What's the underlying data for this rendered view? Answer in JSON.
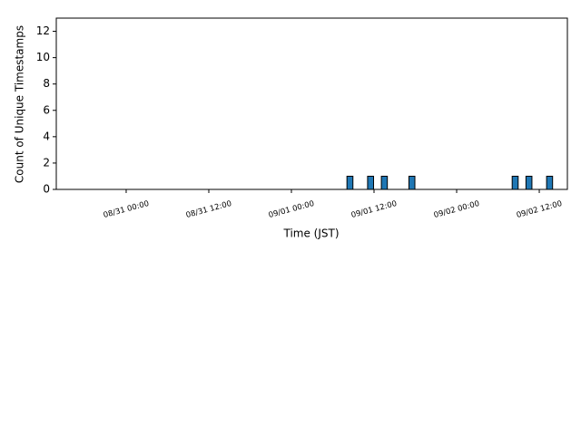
{
  "chart_data": {
    "type": "histogram",
    "xlabel": "Time (JST)",
    "ylabel": "Count of Unique Timestamps",
    "bins": [
      "09/01 08:00",
      "09/01 09:00",
      "09/01 10:00",
      "09/01 11:00",
      "09/01 12:00",
      "09/01 13:00",
      "09/01 14:00",
      "09/01 15:00",
      "09/01 16:00",
      "09/01 17:00",
      "09/01 18:00",
      "09/01 19:00",
      "09/01 20:00",
      "09/01 21:00",
      "09/01 22:00",
      "09/01 23:00",
      "09/02 00:00",
      "09/02 01:00",
      "09/02 02:00",
      "09/02 03:00",
      "09/02 04:00",
      "09/02 05:00",
      "09/02 06:00",
      "09/02 07:00",
      "09/02 08:00",
      "09/02 09:00",
      "09/02 10:00",
      "09/02 11:00",
      "09/02 12:00",
      "09/02 13:00",
      "09/02 14:00"
    ],
    "values": [
      1,
      0,
      0,
      1,
      0,
      1,
      0,
      0,
      0,
      1,
      0,
      0,
      0,
      0,
      0,
      0,
      0,
      0,
      0,
      0,
      0,
      0,
      0,
      0,
      1,
      0,
      1,
      0,
      0,
      1
    ],
    "color": "#1f77b4",
    "edgecolor": "#000000",
    "xlim": [
      "08/30 13:51",
      "09/02 16:05"
    ],
    "xticks": [
      "08/31 00:00",
      "08/31 12:00",
      "09/01 00:00",
      "09/01 12:00",
      "09/02 00:00",
      "09/02 12:00"
    ],
    "ylim": [
      0,
      13
    ],
    "yticks": [
      0,
      2,
      4,
      6,
      8,
      10,
      12
    ]
  }
}
